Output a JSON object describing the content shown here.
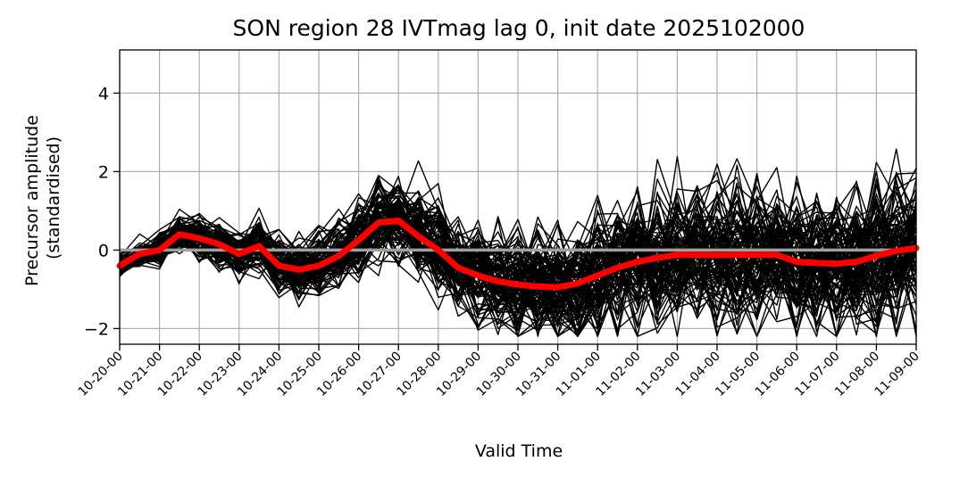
{
  "chart_data": {
    "type": "line",
    "title": "SON region 28 IVTmag lag 0, init date 2025102000",
    "xlabel": "Valid Time",
    "ylabel_lines": [
      "Precursor amplitude",
      "(standardised)"
    ],
    "x_tick_labels": [
      "10-20-00",
      "10-21-00",
      "10-22-00",
      "10-23-00",
      "10-24-00",
      "10-25-00",
      "10-26-00",
      "10-27-00",
      "10-28-00",
      "10-29-00",
      "10-30-00",
      "10-31-00",
      "11-01-00",
      "11-02-00",
      "11-03-00",
      "11-04-00",
      "11-05-00",
      "11-06-00",
      "11-07-00",
      "11-08-00",
      "11-09-00"
    ],
    "y_ticks": [
      -2,
      0,
      2,
      4
    ],
    "y_tick_labels": [
      "−2",
      "0",
      "2",
      "4"
    ],
    "xlim": [
      0,
      20
    ],
    "ylim": [
      -2.4,
      5.1
    ],
    "grid": true,
    "zero_line": {
      "y": 0,
      "color": "#a0a0a0"
    },
    "ensemble": {
      "color": "#000000",
      "members": 100,
      "x_step_days": 0.5
    },
    "mean_series": {
      "color": "#ff0000",
      "x": [
        0,
        0.5,
        1,
        1.5,
        2,
        2.5,
        3,
        3.5,
        4,
        4.5,
        5,
        5.5,
        6,
        6.5,
        7,
        7.5,
        8,
        8.5,
        9,
        9.5,
        10,
        10.5,
        11,
        11.5,
        12,
        12.5,
        13,
        13.5,
        14,
        14.5,
        15,
        15.5,
        16,
        16.5,
        17,
        17.5,
        18,
        18.5,
        19,
        19.5,
        20
      ],
      "values": [
        -0.4,
        -0.1,
        0.0,
        0.4,
        0.3,
        0.15,
        -0.1,
        0.1,
        -0.4,
        -0.5,
        -0.4,
        -0.15,
        0.25,
        0.7,
        0.75,
        0.35,
        0.0,
        -0.45,
        -0.65,
        -0.8,
        -0.88,
        -0.93,
        -0.95,
        -0.85,
        -0.65,
        -0.45,
        -0.3,
        -0.2,
        -0.12,
        -0.12,
        -0.13,
        -0.12,
        -0.12,
        -0.12,
        -0.3,
        -0.33,
        -0.35,
        -0.3,
        -0.15,
        -0.02,
        0.05
      ]
    }
  }
}
